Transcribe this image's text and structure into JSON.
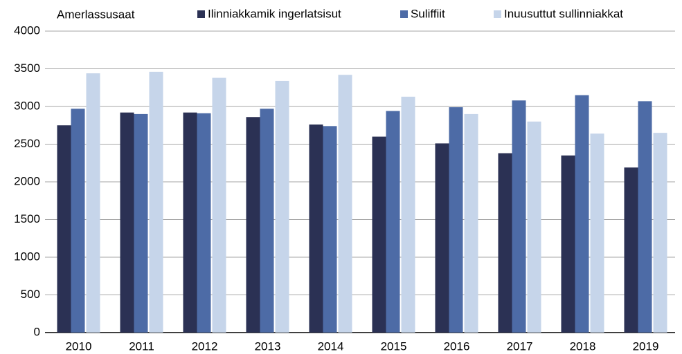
{
  "chart_data": {
    "type": "bar",
    "ylabel": "Amerlassusaat",
    "categories": [
      "2010",
      "2011",
      "2012",
      "2013",
      "2014",
      "2015",
      "2016",
      "2017",
      "2018",
      "2019"
    ],
    "series": [
      {
        "name": "Ilinniakkamik ingerlatsisut",
        "color": "#2b3154",
        "values": [
          2750,
          2920,
          2920,
          2860,
          2760,
          2600,
          2510,
          2380,
          2350,
          2190
        ]
      },
      {
        "name": "Suliffiit",
        "color": "#4d6ba6",
        "values": [
          2970,
          2900,
          2910,
          2970,
          2740,
          2940,
          2990,
          3080,
          3150,
          3070
        ]
      },
      {
        "name": "Inuusuttut sullinniakkat",
        "color": "#c6d5ea",
        "values": [
          3440,
          3460,
          3380,
          3340,
          3420,
          3130,
          2900,
          2800,
          2640,
          2650
        ]
      }
    ],
    "ylim": [
      0,
      4000
    ],
    "yticks": [
      0,
      500,
      1000,
      1500,
      2000,
      2500,
      3000,
      3500,
      4000
    ],
    "grid": true
  }
}
